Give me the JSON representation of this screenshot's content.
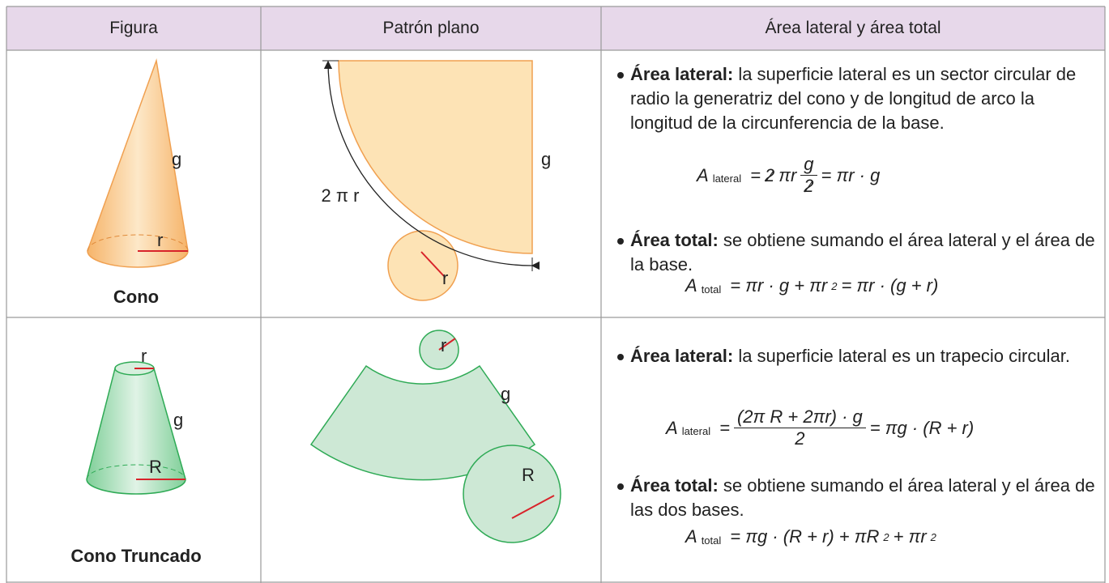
{
  "table": {
    "header": [
      "Figura",
      "Patrón plano",
      "Área lateral y área total"
    ],
    "rows": [
      {
        "figure_label": "Cono",
        "figure_marks": [
          "g",
          "r"
        ],
        "pattern_marks": [
          "2 π r",
          "g",
          "r"
        ],
        "items": [
          {
            "term": "Área lateral:",
            "text": "la superficie lateral es un sector circular de radio la generatriz del cono y de longitud de arco la longitud de la circunferencia de la base.",
            "formula": {
              "symbol": "A",
              "sub": "lateral",
              "parts": [
                "=",
                "2",
                "πr",
                "g",
                "2",
                "= πr · g"
              ]
            }
          },
          {
            "term": "Área total:",
            "text": "se obtiene sumando el área lateral y el área de la base.",
            "formula": {
              "symbol": "A",
              "sub": "total",
              "parts": [
                "= πr · g + πr",
                "2",
                "= πr · (g + r)"
              ]
            }
          }
        ]
      },
      {
        "figure_label": "Cono Truncado",
        "figure_marks": [
          "r",
          "g",
          "R"
        ],
        "pattern_marks": [
          "r",
          "g",
          "R"
        ],
        "items": [
          {
            "term": "Área lateral:",
            "text": "la superficie lateral es un trapecio circular.",
            "formula": {
              "symbol": "A",
              "sub": "lateral",
              "parts": [
                "=",
                "(2π R + 2πr) · g",
                "2",
                "= πg · (R + r)"
              ]
            }
          },
          {
            "term": "Área total:",
            "text": "se obtiene sumando el área lateral y el área de las dos bases.",
            "formula": {
              "symbol": "A",
              "sub": "total",
              "parts": [
                "= πg · (R + r) + πR",
                "2",
                " + πr",
                "2"
              ]
            }
          }
        ]
      }
    ]
  }
}
